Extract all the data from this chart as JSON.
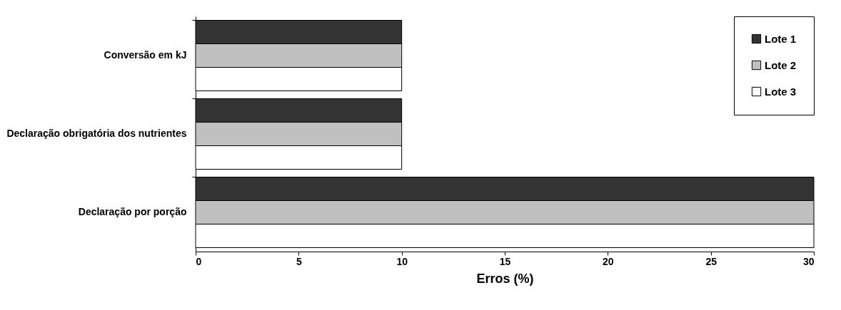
{
  "chart_data": {
    "type": "bar",
    "orientation": "horizontal",
    "xlabel": "Erros (%)",
    "categories": [
      "Conversão em kJ",
      "Declaração obrigatória dos nutrientes",
      "Declaração por porção"
    ],
    "series": [
      {
        "name": "Lote 1",
        "color": "#333333",
        "values": [
          10,
          10,
          30
        ]
      },
      {
        "name": "Lote 2",
        "color": "#c0c0c0",
        "values": [
          10,
          10,
          30
        ]
      },
      {
        "name": "Lote 3",
        "color": "#ffffff",
        "values": [
          10,
          10,
          30
        ]
      }
    ],
    "xlim": [
      0,
      30
    ],
    "xticks": [
      0,
      5,
      10,
      15,
      20,
      25,
      30
    ],
    "grid": false,
    "legend": "top right"
  }
}
